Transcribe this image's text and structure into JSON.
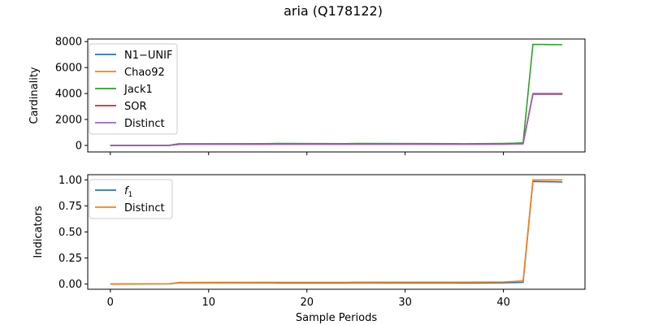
{
  "figure_title": "aria (Q178122)",
  "chart_data": [
    {
      "type": "line",
      "ylabel": "Cardinality",
      "xlabel": "",
      "xlim": [
        -2.3,
        48.3
      ],
      "ylim": [
        -500,
        8200
      ],
      "x_ticks": [
        0,
        10,
        20,
        30,
        40
      ],
      "y_ticks": [
        0,
        2000,
        4000,
        6000,
        8000
      ],
      "y_tick_labels": [
        "0",
        "2000",
        "4000",
        "6000",
        "8000"
      ],
      "show_x_tick_labels": false,
      "legend": "upper-left",
      "series": [
        {
          "name": "N1−UNIF",
          "color": "#1f77b4",
          "x": [
            0,
            6,
            7,
            16,
            17,
            24,
            25,
            35,
            36,
            40,
            41,
            42,
            43,
            44,
            45,
            46
          ],
          "y": [
            5,
            10,
            90,
            95,
            110,
            100,
            105,
            100,
            95,
            110,
            120,
            140,
            3950,
            3950,
            3950,
            3950
          ]
        },
        {
          "name": "Chao92",
          "color": "#ff7f0e",
          "x": [
            0,
            6,
            7,
            16,
            17,
            24,
            25,
            35,
            36,
            40,
            41,
            42,
            43,
            44,
            45,
            46
          ],
          "y": [
            5,
            10,
            90,
            95,
            110,
            100,
            105,
            100,
            95,
            110,
            120,
            140,
            3990,
            3990,
            3990,
            3990
          ]
        },
        {
          "name": "Jack1",
          "color": "#2ca02c",
          "x": [
            0,
            6,
            7,
            16,
            17,
            24,
            25,
            35,
            36,
            40,
            41,
            42,
            43,
            44,
            45,
            46
          ],
          "y": [
            10,
            20,
            130,
            140,
            150,
            140,
            150,
            140,
            130,
            150,
            170,
            200,
            7780,
            7780,
            7770,
            7760
          ]
        },
        {
          "name": "SOR",
          "color": "#d62728",
          "x": [
            0,
            6,
            7,
            16,
            17,
            24,
            25,
            35,
            36,
            40,
            41,
            42,
            43,
            44,
            45,
            46
          ],
          "y": [
            5,
            10,
            85,
            90,
            105,
            95,
            100,
            95,
            90,
            105,
            115,
            135,
            3960,
            3960,
            3960,
            3960
          ]
        },
        {
          "name": "Distinct",
          "color": "#9467bd",
          "x": [
            0,
            6,
            7,
            16,
            17,
            24,
            25,
            35,
            36,
            40,
            41,
            42,
            43,
            44,
            45,
            46
          ],
          "y": [
            5,
            10,
            85,
            90,
            100,
            95,
            100,
            95,
            90,
            100,
            110,
            130,
            4000,
            4000,
            4000,
            4000
          ]
        }
      ]
    },
    {
      "type": "line",
      "ylabel": "Indicators",
      "xlabel": "Sample Periods",
      "xlim": [
        -2.3,
        48.3
      ],
      "ylim": [
        -0.05,
        1.05
      ],
      "x_ticks": [
        0,
        10,
        20,
        30,
        40
      ],
      "x_tick_labels": [
        "0",
        "10",
        "20",
        "30",
        "40"
      ],
      "y_ticks": [
        0.0,
        0.25,
        0.5,
        0.75,
        1.0
      ],
      "y_tick_labels": [
        "0.00",
        "0.25",
        "0.50",
        "0.75",
        "1.00"
      ],
      "show_x_tick_labels": true,
      "legend": "upper-left",
      "series": [
        {
          "name": "f1",
          "label_main": "f",
          "label_sub": "1",
          "color": "#1f77b4",
          "x": [
            0,
            6,
            7,
            16,
            17,
            24,
            25,
            35,
            36,
            40,
            41,
            42,
            43,
            44,
            45,
            46
          ],
          "y": [
            0.0,
            0.002,
            0.012,
            0.013,
            0.011,
            0.011,
            0.012,
            0.011,
            0.01,
            0.012,
            0.014,
            0.016,
            0.985,
            0.983,
            0.982,
            0.98
          ]
        },
        {
          "name": "Distinct",
          "color": "#ff7f0e",
          "x": [
            0,
            6,
            7,
            16,
            17,
            24,
            25,
            35,
            36,
            40,
            41,
            42,
            43,
            44,
            45,
            46
          ],
          "y": [
            0.0,
            0.003,
            0.015,
            0.017,
            0.016,
            0.016,
            0.018,
            0.018,
            0.018,
            0.02,
            0.025,
            0.03,
            1.0,
            1.0,
            1.0,
            1.0
          ]
        }
      ]
    }
  ]
}
